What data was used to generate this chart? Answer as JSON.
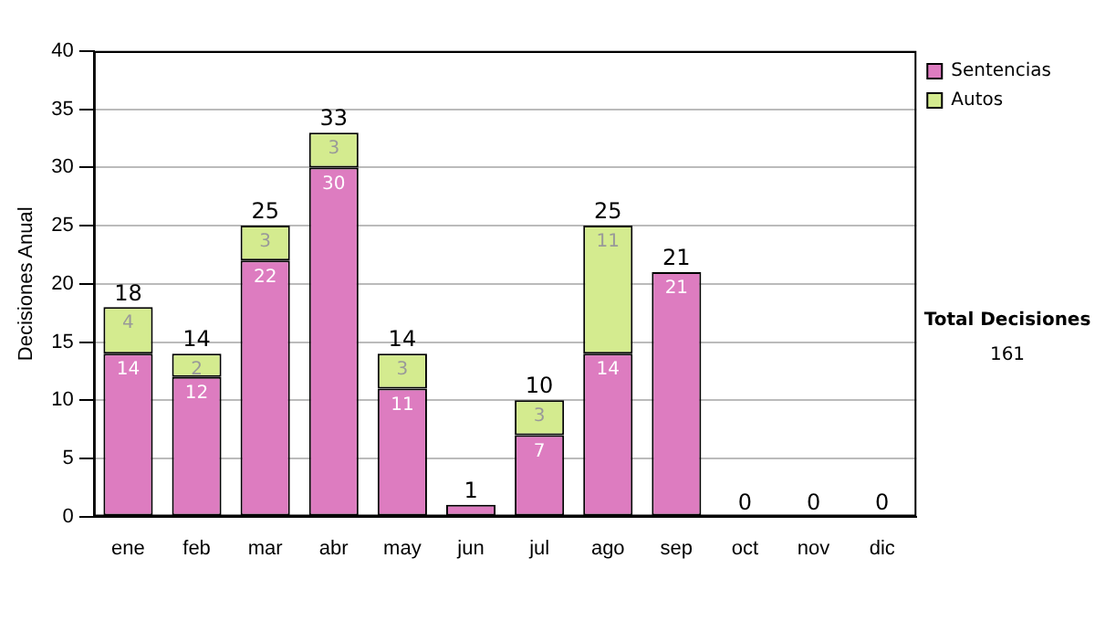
{
  "chart_data": {
    "type": "bar",
    "stacked": true,
    "ylabel": "Decisiones Anual",
    "categories": [
      "ene",
      "feb",
      "mar",
      "abr",
      "may",
      "jun",
      "jul",
      "ago",
      "sep",
      "oct",
      "nov",
      "dic"
    ],
    "series": [
      {
        "name": "Sentencias",
        "color": "#dd7cc0",
        "values": [
          14,
          12,
          22,
          30,
          11,
          1,
          7,
          14,
          21,
          0,
          0,
          0
        ],
        "value_labels": [
          "14",
          "12",
          "22",
          "30",
          "11",
          null,
          "7",
          "14",
          "21",
          null,
          null,
          null
        ]
      },
      {
        "name": "Autos",
        "color": "#d4eb8f",
        "values": [
          4,
          2,
          3,
          3,
          3,
          0,
          3,
          11,
          0,
          0,
          0,
          0
        ],
        "value_labels": [
          "4",
          "2",
          "3",
          "3",
          "3",
          null,
          "3",
          "11",
          null,
          null,
          null,
          null
        ]
      }
    ],
    "totals": [
      "18",
      "14",
      "25",
      "33",
      "14",
      "1",
      "10",
      "25",
      "21",
      "0",
      "0",
      "0"
    ],
    "ylim": [
      0,
      40
    ],
    "yticks": [
      0,
      5,
      10,
      15,
      20,
      25,
      30,
      35,
      40
    ],
    "grid": "y",
    "legend": "right",
    "annotations": [
      "Total Decisiones",
      "161"
    ]
  }
}
